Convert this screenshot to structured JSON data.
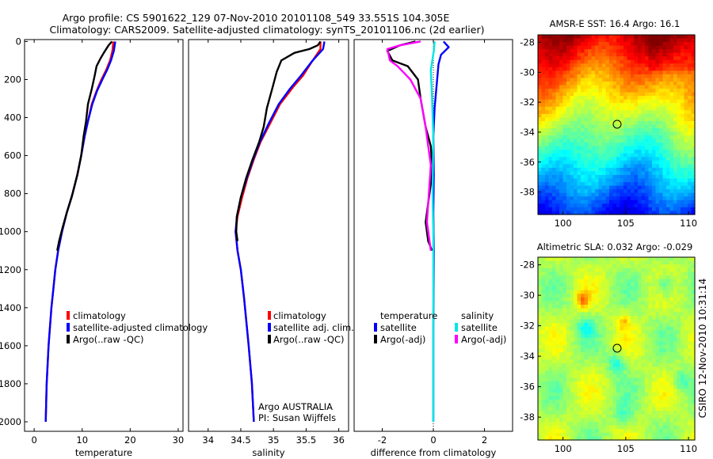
{
  "title_line1": "Argo profile: CS 5901622_129 07-Nov-2010 20101108_549 33.551S 104.305E",
  "title_line2": "Climatology: CARS2009. Satellite-adjusted climatology: synTS_20101106.nc (2d earlier)",
  "side_credit": "CSIRO 12-Nov-2010 10:31:14",
  "chart_data": [
    {
      "id": "temperature",
      "type": "line",
      "xlabel": "temperature",
      "ylabel": "",
      "xlim": [
        -2,
        31
      ],
      "ylim": [
        2050,
        -10
      ],
      "xticks": [
        0,
        10,
        20,
        30
      ],
      "xtick_labels": [
        "0",
        "10",
        "20",
        "30"
      ],
      "yticks": [
        0,
        200,
        400,
        600,
        800,
        1000,
        1200,
        1400,
        1600,
        1800,
        2000
      ],
      "ytick_labels": [
        "0",
        "200",
        "400",
        "600",
        "800",
        "1000",
        "1200",
        "1400",
        "1600",
        "1800",
        "2000"
      ],
      "legend": [
        "climatology",
        "satellite-adjusted climatology",
        "Argo(..raw -QC)"
      ],
      "series": [
        {
          "name": "climatology",
          "color": "#ff0000",
          "points": [
            [
              16.5,
              0
            ],
            [
              16.3,
              50
            ],
            [
              15.8,
              100
            ],
            [
              15.0,
              150
            ],
            [
              14.0,
              200
            ],
            [
              13.0,
              260
            ],
            [
              12.0,
              330
            ],
            [
              11.2,
              420
            ],
            [
              10.5,
              500
            ],
            [
              9.8,
              600
            ],
            [
              9.0,
              700
            ],
            [
              8.0,
              800
            ],
            [
              6.8,
              900
            ],
            [
              5.8,
              1000
            ],
            [
              5.0,
              1100
            ],
            [
              4.4,
              1200
            ],
            [
              4.0,
              1300
            ],
            [
              3.6,
              1400
            ],
            [
              3.3,
              1500
            ],
            [
              3.0,
              1600
            ],
            [
              2.8,
              1700
            ],
            [
              2.6,
              1800
            ],
            [
              2.5,
              1900
            ],
            [
              2.4,
              2000
            ]
          ]
        },
        {
          "name": "satellite-adjusted climatology",
          "color": "#0000ff",
          "points": [
            [
              16.9,
              0
            ],
            [
              16.6,
              50
            ],
            [
              16.0,
              100
            ],
            [
              15.2,
              150
            ],
            [
              14.2,
              200
            ],
            [
              13.1,
              260
            ],
            [
              12.1,
              330
            ],
            [
              11.2,
              420
            ],
            [
              10.5,
              500
            ],
            [
              9.8,
              600
            ],
            [
              9.0,
              700
            ],
            [
              8.0,
              800
            ],
            [
              6.8,
              900
            ],
            [
              5.8,
              1000
            ],
            [
              5.0,
              1100
            ],
            [
              4.4,
              1200
            ],
            [
              4.0,
              1300
            ],
            [
              3.6,
              1400
            ],
            [
              3.3,
              1500
            ],
            [
              3.0,
              1600
            ],
            [
              2.8,
              1700
            ],
            [
              2.6,
              1800
            ],
            [
              2.5,
              1900
            ],
            [
              2.4,
              2000
            ]
          ]
        },
        {
          "name": "Argo(..raw -QC)",
          "color": "#000000",
          "points": [
            [
              16.2,
              0
            ],
            [
              15.5,
              20
            ],
            [
              14.5,
              60
            ],
            [
              13.8,
              90
            ],
            [
              13.0,
              130
            ],
            [
              12.6,
              180
            ],
            [
              12.0,
              250
            ],
            [
              11.2,
              330
            ],
            [
              10.8,
              420
            ],
            [
              10.3,
              500
            ],
            [
              9.8,
              600
            ],
            [
              9.0,
              700
            ],
            [
              7.8,
              820
            ],
            [
              6.8,
              900
            ],
            [
              5.9,
              980
            ],
            [
              5.2,
              1050
            ],
            [
              4.8,
              1100
            ]
          ]
        }
      ]
    },
    {
      "id": "salinity",
      "type": "line",
      "xlabel": "salinity",
      "ylabel": "",
      "xlim": [
        33.7,
        36.15
      ],
      "ylim": [
        2050,
        -10
      ],
      "xticks": [
        34,
        34.5,
        35,
        35.5,
        36
      ],
      "xtick_labels": [
        "34",
        "34.5",
        "35",
        "35.5",
        "36"
      ],
      "legend": [
        "climatology",
        "satellite adj. clim.",
        "Argo(..raw -QC)"
      ],
      "annotation": [
        "Argo AUSTRALIA",
        "PI: Susan Wijffels"
      ],
      "series": [
        {
          "name": "climatology",
          "color": "#ff0000",
          "points": [
            [
              35.72,
              0
            ],
            [
              35.72,
              40
            ],
            [
              35.6,
              100
            ],
            [
              35.45,
              180
            ],
            [
              35.3,
              240
            ],
            [
              35.1,
              330
            ],
            [
              34.95,
              430
            ],
            [
              34.8,
              530
            ],
            [
              34.7,
              620
            ],
            [
              34.6,
              720
            ],
            [
              34.52,
              820
            ],
            [
              34.45,
              920
            ],
            [
              34.42,
              1000
            ],
            [
              34.45,
              1100
            ],
            [
              34.5,
              1200
            ],
            [
              34.55,
              1350
            ],
            [
              34.62,
              1600
            ],
            [
              34.67,
              1800
            ],
            [
              34.7,
              2000
            ]
          ]
        },
        {
          "name": "satellite adj. clim.",
          "color": "#0000ff",
          "points": [
            [
              35.78,
              0
            ],
            [
              35.76,
              40
            ],
            [
              35.6,
              100
            ],
            [
              35.42,
              180
            ],
            [
              35.25,
              250
            ],
            [
              35.08,
              330
            ],
            [
              34.93,
              430
            ],
            [
              34.79,
              530
            ],
            [
              34.69,
              620
            ],
            [
              34.59,
              720
            ],
            [
              34.5,
              820
            ],
            [
              34.44,
              920
            ],
            [
              34.42,
              1000
            ],
            [
              34.45,
              1100
            ],
            [
              34.5,
              1200
            ],
            [
              34.55,
              1350
            ],
            [
              34.62,
              1600
            ],
            [
              34.67,
              1800
            ],
            [
              34.7,
              2000
            ]
          ]
        },
        {
          "name": "Argo(..raw -QC)",
          "color": "#000000",
          "points": [
            [
              35.72,
              0
            ],
            [
              35.68,
              20
            ],
            [
              35.55,
              40
            ],
            [
              35.32,
              60
            ],
            [
              35.12,
              100
            ],
            [
              35.05,
              160
            ],
            [
              34.98,
              250
            ],
            [
              34.9,
              350
            ],
            [
              34.85,
              450
            ],
            [
              34.78,
              530
            ],
            [
              34.68,
              620
            ],
            [
              34.58,
              720
            ],
            [
              34.5,
              820
            ],
            [
              34.44,
              920
            ],
            [
              34.43,
              1000
            ],
            [
              34.45,
              1050
            ]
          ]
        }
      ]
    },
    {
      "id": "difference",
      "type": "line",
      "xlabel": "difference from climatology",
      "ylabel": "",
      "xlim": [
        -3.1,
        3.1
      ],
      "ylim": [
        2050,
        -10
      ],
      "xticks": [
        -2,
        0,
        2
      ],
      "xtick_labels": [
        "-2",
        "0",
        "2"
      ],
      "legend_headers": [
        "temperature",
        "salinity"
      ],
      "legend": [
        "satellite",
        "Argo(-adj)",
        "satellite",
        "Argo(-adj)"
      ],
      "series": [
        {
          "name": "temperature satellite",
          "color": "#0000ff",
          "points": [
            [
              0.4,
              0
            ],
            [
              0.6,
              30
            ],
            [
              0.3,
              70
            ],
            [
              0.2,
              120
            ],
            [
              0.15,
              200
            ],
            [
              0.05,
              350
            ],
            [
              0.0,
              500
            ],
            [
              0.02,
              700
            ],
            [
              0.0,
              900
            ],
            [
              0.02,
              1100
            ],
            [
              0.0,
              1500
            ],
            [
              0.0,
              2000
            ]
          ]
        },
        {
          "name": "temperature Argo(-adj)",
          "color": "#000000",
          "points": [
            [
              -0.7,
              0
            ],
            [
              -1.3,
              20
            ],
            [
              -1.8,
              50
            ],
            [
              -1.6,
              100
            ],
            [
              -1.0,
              130
            ],
            [
              -0.6,
              200
            ],
            [
              -0.5,
              300
            ],
            [
              -0.3,
              450
            ],
            [
              -0.1,
              550
            ],
            [
              -0.05,
              650
            ],
            [
              -0.1,
              750
            ],
            [
              -0.2,
              850
            ],
            [
              -0.3,
              950
            ],
            [
              -0.2,
              1050
            ],
            [
              -0.05,
              1100
            ]
          ]
        },
        {
          "name": "salinity satellite",
          "color": "#00e5e5",
          "points": [
            [
              0.05,
              0
            ],
            [
              0.02,
              50
            ],
            [
              -0.1,
              150
            ],
            [
              -0.05,
              300
            ],
            [
              0.0,
              500
            ],
            [
              -0.03,
              800
            ],
            [
              0.0,
              1000
            ],
            [
              0.0,
              1500
            ],
            [
              0.0,
              2000
            ]
          ]
        },
        {
          "name": "salinity Argo(-adj)",
          "color": "#ff00ff",
          "points": [
            [
              -0.5,
              0
            ],
            [
              -1.3,
              20
            ],
            [
              -1.8,
              40
            ],
            [
              -1.7,
              100
            ],
            [
              -1.4,
              130
            ],
            [
              -0.9,
              200
            ],
            [
              -0.5,
              300
            ],
            [
              -0.3,
              450
            ],
            [
              -0.2,
              550
            ],
            [
              -0.1,
              650
            ],
            [
              -0.15,
              750
            ],
            [
              -0.2,
              850
            ],
            [
              -0.25,
              950
            ],
            [
              -0.15,
              1050
            ],
            [
              -0.1,
              1100
            ]
          ]
        }
      ]
    },
    {
      "id": "sst_map",
      "type": "heatmap",
      "title": "AMSR-E SST: 16.4  Argo: 16.1",
      "xlim": [
        98,
        110.5
      ],
      "ylim": [
        -39.5,
        -27.5
      ],
      "xticks": [
        100,
        105,
        110
      ],
      "yticks": [
        -28,
        -30,
        -32,
        -34,
        -36,
        -38
      ],
      "marker": [
        104.305,
        -33.551
      ],
      "colorscale": "jet"
    },
    {
      "id": "sla_map",
      "type": "heatmap",
      "title": "Altimetric SLA: 0.032  Argo: -0.029",
      "xlim": [
        98,
        110.5
      ],
      "ylim": [
        -39.5,
        -27.5
      ],
      "xticks": [
        100,
        105,
        110
      ],
      "yticks": [
        -28,
        -30,
        -32,
        -34,
        -36,
        -38
      ],
      "marker": [
        104.305,
        -33.551
      ],
      "colorscale": "jet"
    }
  ]
}
